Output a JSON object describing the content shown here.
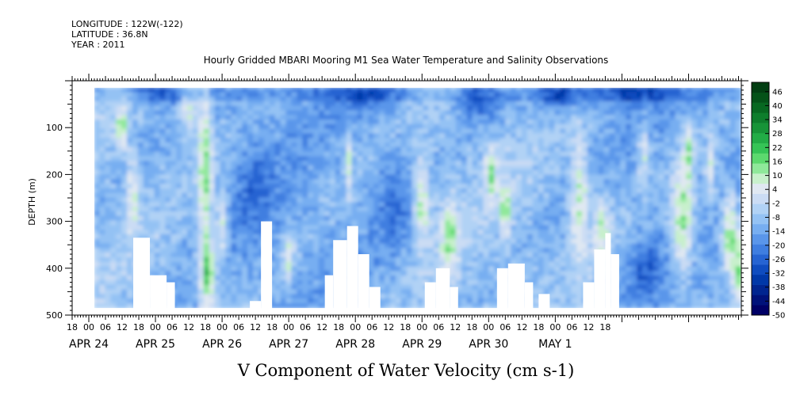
{
  "header": {
    "longitude": "LONGITUDE : 122W(-122)",
    "latitude": "LATITUDE : 36.8N",
    "year": "YEAR : 2011",
    "title": "Hourly Gridded MBARI Mooring M1 Sea Water Temperature and Salinity Observations"
  },
  "chart_data": {
    "type": "heatmap",
    "title": "V Component of Water Velocity (cm s-1)",
    "ylabel": "DEPTH (m)",
    "ylim": [
      500,
      0
    ],
    "y_ticks": [
      100,
      200,
      300,
      400,
      500
    ],
    "x_start_hour": 18,
    "x_end_hour": 19,
    "x_hour_tick_labels": [
      "18",
      "00",
      "06",
      "12",
      "18",
      "00",
      "06",
      "12",
      "18",
      "00",
      "06",
      "12",
      "18",
      "00",
      "06",
      "12",
      "18",
      "00",
      "06",
      "12",
      "18",
      "00",
      "06",
      "12",
      "18",
      "00",
      "06",
      "12",
      "18",
      "00",
      "06",
      "12",
      "18"
    ],
    "x_date_labels": [
      "APR 24",
      "APR 25",
      "APR 26",
      "APR 27",
      "APR 28",
      "APR 29",
      "APR 30",
      "MAY  1"
    ],
    "data_extent": {
      "time_start_hours_after_apr24_00": 2,
      "depth_top": 15,
      "depth_bottom": 485
    },
    "colorbar": {
      "min": -50,
      "max": 50,
      "step": 6,
      "tick_labels": [
        "46",
        "40",
        "34",
        "28",
        "22",
        "16",
        "10",
        "4",
        "-2",
        "-8",
        "-14",
        "-20",
        "-26",
        "-32",
        "-38",
        "-44",
        "-50"
      ],
      "colors": [
        "#000066",
        "#00127a",
        "#002590",
        "#0038a8",
        "#0f4cbf",
        "#2664d2",
        "#3f7ee0",
        "#5a96ea",
        "#77aef1",
        "#94c2f4",
        "#b1d2f5",
        "#cbdcf4",
        "#e0e8f2",
        "#c8f0cc",
        "#8fe89a",
        "#5cd96e",
        "#35c456",
        "#22ac46",
        "#179438",
        "#0e7e2c",
        "#086821",
        "#045218",
        "#023e12"
      ]
    },
    "blank_regions": [
      {
        "t0": 16,
        "t1": 22,
        "d0": 335,
        "d1": 500
      },
      {
        "t0": 22,
        "t1": 28,
        "d0": 415,
        "d1": 500
      },
      {
        "t0": 28,
        "t1": 31,
        "d0": 430,
        "d1": 500
      },
      {
        "t0": 58,
        "t1": 62,
        "d0": 470,
        "d1": 500
      },
      {
        "t0": 62,
        "t1": 66,
        "d0": 300,
        "d1": 500
      },
      {
        "t0": 85,
        "t1": 88,
        "d0": 415,
        "d1": 500
      },
      {
        "t0": 88,
        "t1": 93,
        "d0": 340,
        "d1": 500
      },
      {
        "t0": 93,
        "t1": 97,
        "d0": 310,
        "d1": 500
      },
      {
        "t0": 97,
        "t1": 101,
        "d0": 370,
        "d1": 500
      },
      {
        "t0": 101,
        "t1": 105,
        "d0": 440,
        "d1": 500
      },
      {
        "t0": 121,
        "t1": 125,
        "d0": 430,
        "d1": 500
      },
      {
        "t0": 125,
        "t1": 130,
        "d0": 400,
        "d1": 500
      },
      {
        "t0": 130,
        "t1": 133,
        "d0": 440,
        "d1": 500
      },
      {
        "t0": 147,
        "t1": 151,
        "d0": 400,
        "d1": 500
      },
      {
        "t0": 151,
        "t1": 157,
        "d0": 390,
        "d1": 500
      },
      {
        "t0": 157,
        "t1": 160,
        "d0": 430,
        "d1": 500
      },
      {
        "t0": 162,
        "t1": 166,
        "d0": 455,
        "d1": 500
      },
      {
        "t0": 178,
        "t1": 182,
        "d0": 430,
        "d1": 500
      },
      {
        "t0": 182,
        "t1": 186,
        "d0": 360,
        "d1": 500
      },
      {
        "t0": 186,
        "t1": 188,
        "d0": 325,
        "d1": 500
      },
      {
        "t0": 188,
        "t1": 191,
        "d0": 370,
        "d1": 500
      }
    ],
    "green_regions": [
      {
        "t": 12,
        "d": 100,
        "rt": 2,
        "rd": 50,
        "v": 6
      },
      {
        "t": 16,
        "d": 250,
        "rt": 2,
        "rd": 90,
        "v": 4
      },
      {
        "t": 36,
        "d": 60,
        "rt": 3,
        "rd": 50,
        "v": 6
      },
      {
        "t": 42,
        "d": 200,
        "rt": 2.5,
        "rd": 230,
        "v": 10
      },
      {
        "t": 43,
        "d": 410,
        "rt": 2.5,
        "rd": 70,
        "v": 14
      },
      {
        "t": 48,
        "d": 320,
        "rt": 2,
        "rd": 70,
        "v": 6
      },
      {
        "t": 72,
        "d": 380,
        "rt": 2,
        "rd": 50,
        "v": 6
      },
      {
        "t": 94,
        "d": 180,
        "rt": 1,
        "rd": 80,
        "v": 4
      },
      {
        "t": 120,
        "d": 260,
        "rt": 3,
        "rd": 90,
        "v": 10
      },
      {
        "t": 130,
        "d": 330,
        "rt": 3,
        "rd": 80,
        "v": 8
      },
      {
        "t": 145,
        "d": 200,
        "rt": 2,
        "rd": 60,
        "v": 6
      },
      {
        "t": 150,
        "d": 280,
        "rt": 2,
        "rd": 60,
        "v": 6
      },
      {
        "t": 177,
        "d": 260,
        "rt": 3,
        "rd": 120,
        "v": 10
      },
      {
        "t": 185,
        "d": 320,
        "rt": 3,
        "rd": 70,
        "v": 6
      },
      {
        "t": 200,
        "d": 150,
        "rt": 2,
        "rd": 60,
        "v": 4
      },
      {
        "t": 214,
        "d": 300,
        "rt": 4,
        "rd": 110,
        "v": 14
      },
      {
        "t": 216,
        "d": 150,
        "rt": 2,
        "rd": 70,
        "v": 6
      },
      {
        "t": 224,
        "d": 200,
        "rt": 2,
        "rd": 70,
        "v": 6
      },
      {
        "t": 231,
        "d": 320,
        "rt": 3,
        "rd": 80,
        "v": 14
      },
      {
        "t": 234,
        "d": 420,
        "rt": 2,
        "rd": 70,
        "v": 8
      }
    ],
    "deep_blue_regions": [
      {
        "t": 24,
        "d": 20,
        "rt": 10,
        "rd": 30,
        "v": -24
      },
      {
        "t": 100,
        "d": 30,
        "rt": 14,
        "rd": 40,
        "v": -22
      },
      {
        "t": 140,
        "d": 40,
        "rt": 8,
        "rd": 50,
        "v": -24
      },
      {
        "t": 170,
        "d": 30,
        "rt": 10,
        "rd": 40,
        "v": -28
      },
      {
        "t": 195,
        "d": 20,
        "rt": 14,
        "rd": 30,
        "v": -26
      },
      {
        "t": 110,
        "d": 250,
        "rt": 8,
        "rd": 120,
        "v": -20
      },
      {
        "t": 60,
        "d": 230,
        "rt": 8,
        "rd": 120,
        "v": -18
      },
      {
        "t": 200,
        "d": 400,
        "rt": 6,
        "rd": 60,
        "v": -22
      }
    ]
  }
}
